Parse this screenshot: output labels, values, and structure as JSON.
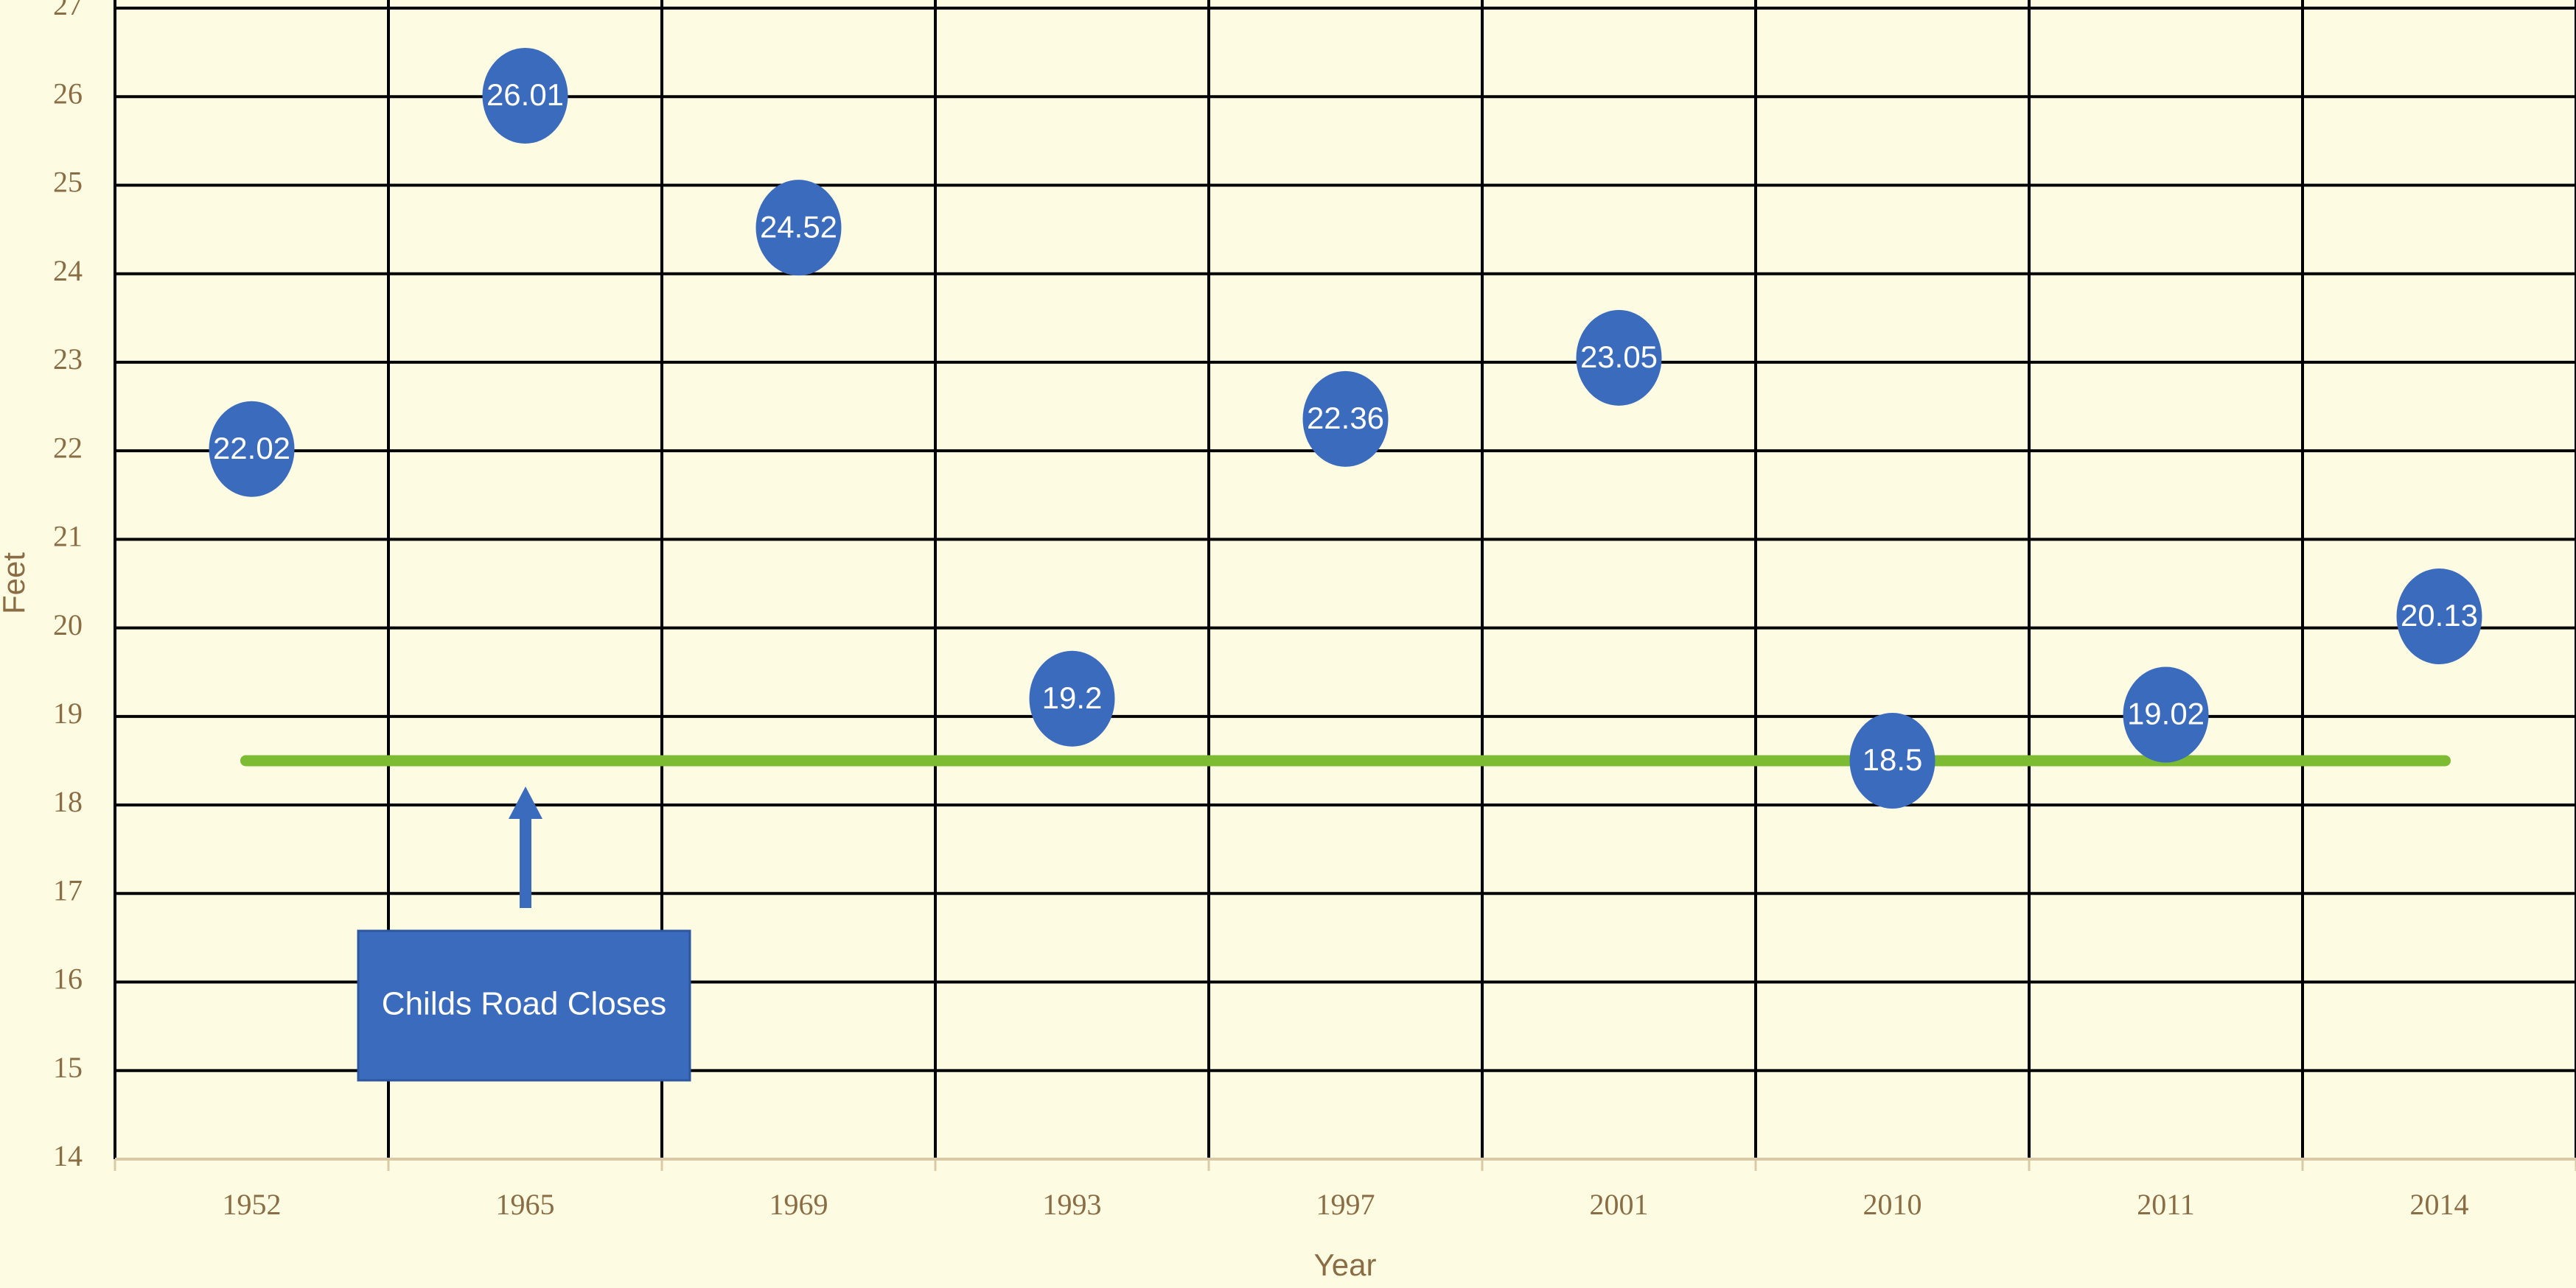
{
  "chart_data": {
    "type": "scatter",
    "categories": [
      "1952",
      "1965",
      "1969",
      "1993",
      "1997",
      "2001",
      "2010",
      "2011",
      "2014"
    ],
    "values": [
      22.02,
      26.01,
      24.52,
      19.2,
      22.36,
      23.05,
      18.5,
      19.02,
      20.13
    ],
    "color": "#3a6bbd",
    "ylim": [
      14,
      27
    ],
    "yticks": [
      14,
      15,
      16,
      17,
      18,
      19,
      20,
      21,
      22,
      23,
      24,
      25,
      26,
      27
    ],
    "grid": true,
    "xlabel": "Year",
    "ylabel": "Feet",
    "reference_line": {
      "value": 18.5,
      "color": "#7dbb32"
    },
    "annotation": "Childs Road Closes"
  }
}
